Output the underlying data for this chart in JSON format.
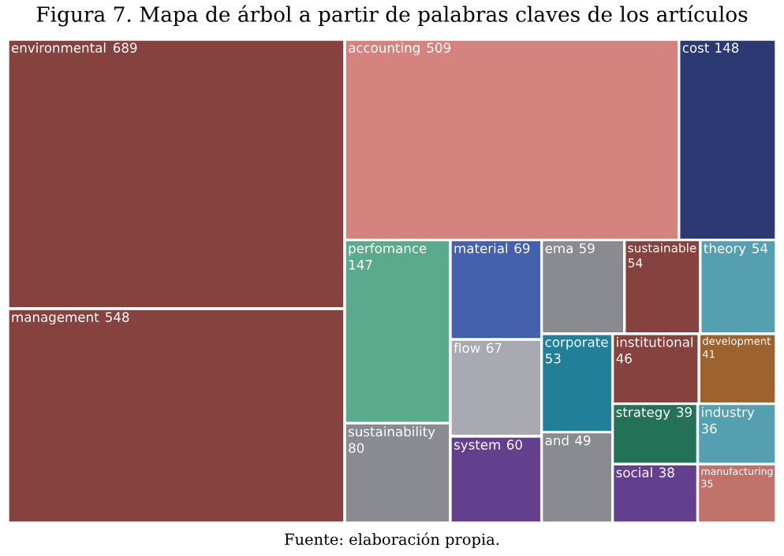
{
  "chart_data": {
    "type": "other",
    "title": "Figura 7. Mapa de árbol a partir de palabras claves de los artículos",
    "categories": [
      "environmental",
      "management",
      "accounting",
      "cost",
      "perfomance",
      "sustainability",
      "material",
      "flow",
      "system",
      "ema",
      "sustainable",
      "theory",
      "corporate",
      "and",
      "institutional",
      "development",
      "strategy",
      "social",
      "industry",
      "manufacturing"
    ],
    "values": [
      689,
      548,
      509,
      148,
      147,
      80,
      69,
      67,
      60,
      59,
      54,
      54,
      53,
      49,
      46,
      41,
      39,
      38,
      36,
      35
    ],
    "colors": [
      "#86423f",
      "#86423f",
      "#d4837e",
      "#2b3a73",
      "#5aaa8e",
      "#8a8b90",
      "#4561ad",
      "#a8a9b1",
      "#643f8e",
      "#8a8b90",
      "#86423f",
      "#55a0b0",
      "#217f99",
      "#8a8b90",
      "#86423f",
      "#9c6330",
      "#237258",
      "#643f8e",
      "#55a0b0",
      "#c0726b"
    ],
    "data_labels": true,
    "annotations": [
      "Fuente: elaboración propia."
    ]
  }
}
